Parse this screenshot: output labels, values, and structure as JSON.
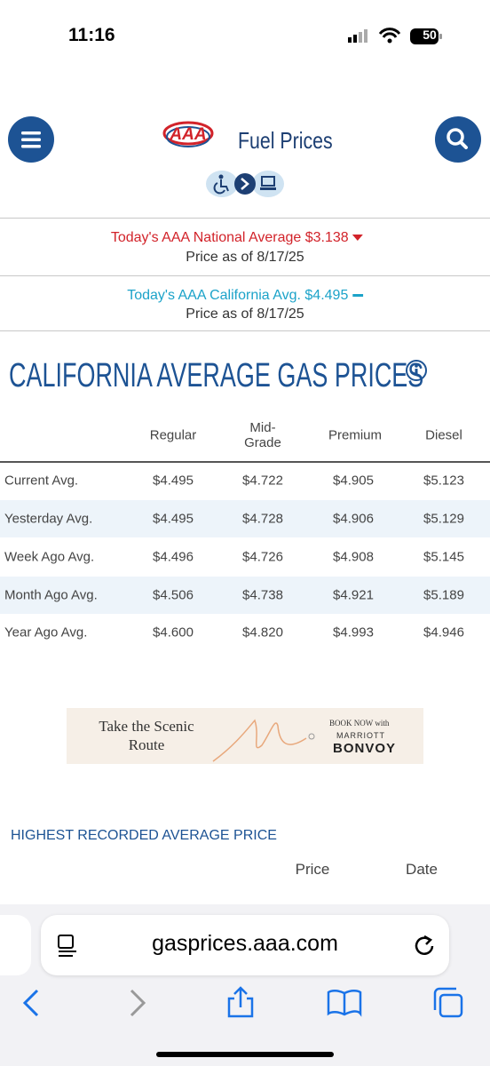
{
  "status_bar": {
    "time": "11:16",
    "battery": "50"
  },
  "header": {
    "logo": "AAA",
    "title": "Fuel Prices"
  },
  "national": {
    "text": "Today's AAA National Average $3.138",
    "date": "Price as of 8/17/25"
  },
  "state": {
    "text": "Today's AAA California Avg. $4.495",
    "date": "Price as of 8/17/25"
  },
  "heading": "CALIFORNIA AVERAGE GAS PRICES",
  "table": {
    "columns": [
      "Regular",
      "Mid-Grade",
      "Premium",
      "Diesel"
    ],
    "rows": [
      [
        "Current Avg.",
        "$4.495",
        "$4.722",
        "$4.905",
        "$5.123"
      ],
      [
        "Yesterday Avg.",
        "$4.495",
        "$4.728",
        "$4.906",
        "$5.129"
      ],
      [
        "Week Ago Avg.",
        "$4.496",
        "$4.726",
        "$4.908",
        "$5.145"
      ],
      [
        "Month Ago Avg.",
        "$4.506",
        "$4.738",
        "$4.921",
        "$5.189"
      ],
      [
        "Year Ago Avg.",
        "$4.600",
        "$4.820",
        "$4.993",
        "$4.946"
      ]
    ]
  },
  "ad": {
    "tagline": "Take the Scenic Route",
    "cta": "BOOK NOW with",
    "brand_top": "MARRIOTT",
    "brand": "BONVOY"
  },
  "records": {
    "title": "HIGHEST RECORDED AVERAGE PRICE",
    "columns": [
      "Price",
      "Date"
    ]
  },
  "browser": {
    "url": "gasprices.aaa.com"
  }
}
